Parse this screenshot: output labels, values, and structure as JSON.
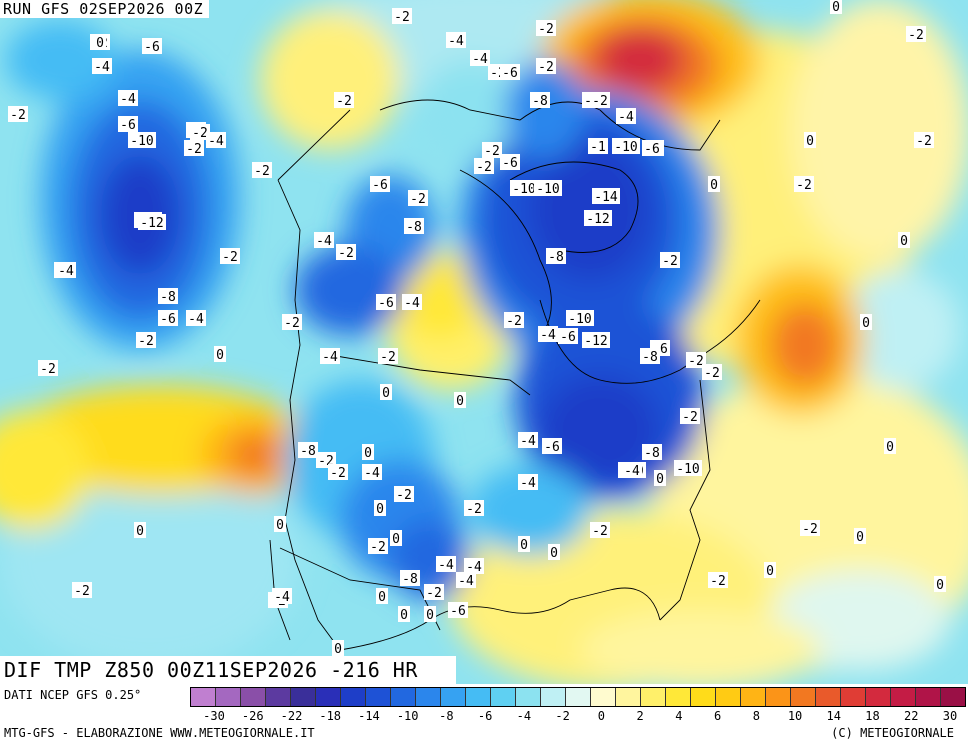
{
  "header": {
    "run_label": "RUN GFS 02SEP2026 00Z"
  },
  "map": {
    "title": "DIF TMP Z850 00Z11SEP2026 -216 HR",
    "variable": "850 hPa temperature anomaly",
    "contour_labels": [
      "-2",
      "-4",
      "-6",
      "-8",
      "-10",
      "-12",
      "-14",
      "-1",
      "0"
    ],
    "labels": [
      "-2",
      "-6",
      "-4",
      "-2",
      "-2",
      "-4",
      "-4",
      "-2",
      "-2",
      "-6",
      "-2",
      "-4",
      "-6",
      "-2",
      "-2",
      "-2",
      "-4",
      "-2",
      "0",
      "-2",
      "-8",
      "-2",
      "-4",
      "-6",
      "-10",
      "-2",
      "-2",
      "-2",
      "-6",
      "-10",
      "-1",
      "-10",
      "-6",
      "-6",
      "-2",
      "-10",
      "-14",
      "-12",
      "-12",
      "0",
      "-2",
      "-2",
      "0",
      "-2",
      "0",
      "-12",
      "-4",
      "-2",
      "-4",
      "-8",
      "-2",
      "-8",
      "-4",
      "-4",
      "-6",
      "-4",
      "-2",
      "0",
      "-2",
      "-8",
      "-6",
      "-10",
      "-2",
      "-4",
      "-6",
      "-12",
      "-6",
      "-8",
      "0",
      "-2",
      "0",
      "-2",
      "-4",
      "-2",
      "0",
      "0",
      "-2",
      "-2",
      "-2",
      "-4",
      "-6",
      "-8",
      "-10",
      "-10",
      "0",
      "-4",
      "-2",
      "-4",
      "-8",
      "0",
      "-2",
      "0",
      "0",
      "-2",
      "-4",
      "-2",
      "0",
      "-2",
      "-2",
      "0",
      "-4",
      "-4",
      "-8",
      "-4",
      "-2",
      "-6",
      "0",
      "0",
      "0",
      "-2",
      "-4",
      "0",
      "-2",
      "0",
      "-2",
      "0",
      "0",
      "-2",
      "0",
      "0",
      "0"
    ]
  },
  "legend": {
    "source": "DATI NCEP GFS 0.25°",
    "ticks": [
      "-30",
      "-26",
      "-22",
      "-18",
      "-14",
      "-10",
      "-8",
      "-6",
      "-4",
      "-2",
      "0",
      "2",
      "4",
      "6",
      "8",
      "10",
      "14",
      "18",
      "22",
      "30"
    ],
    "colors": [
      "#c07fd0",
      "#a468c0",
      "#8a4fa8",
      "#5c3aa0",
      "#3a2f9a",
      "#2a2fb8",
      "#1e3ec8",
      "#1e52d6",
      "#2268e0",
      "#2b86ec",
      "#36a2f2",
      "#45bcf4",
      "#5fd0f2",
      "#8ce2f0",
      "#bff0f4",
      "#e2f8f2",
      "#fffbcf",
      "#fff59e",
      "#fff06a",
      "#ffe838",
      "#ffdc1a",
      "#ffcb14",
      "#ffb415",
      "#fb9418",
      "#f27821",
      "#e95a2b",
      "#e03d35",
      "#d32a3e",
      "#c41c45",
      "#b01448",
      "#9a1046"
    ],
    "credit": "MTG-GFS - ELABORAZIONE WWW.METEOGIORNALE.IT",
    "copyright": "(C) METEOGIORNALE"
  }
}
